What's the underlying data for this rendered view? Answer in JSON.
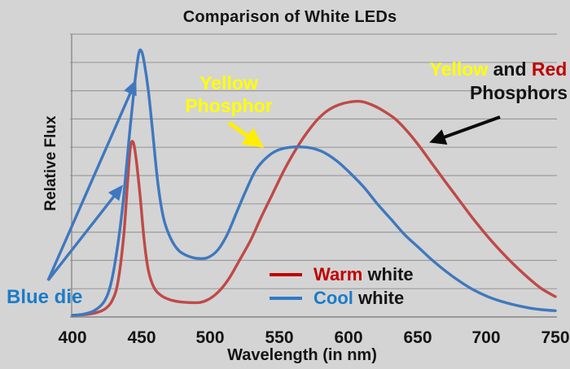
{
  "title": "Comparison of White LEDs",
  "colors": {
    "background": "#d4d4d4",
    "gridline": "#9c9c9c",
    "axis": "#8a8a8a",
    "warm_curve": "#be4a47",
    "cool_curve": "#3f78be",
    "warm_legend_sample": "#c00000",
    "cool_legend_sample": "#2e7bc6",
    "warm_text": "#c00000",
    "cool_text": "#1b7cc8",
    "yellow_text": "#ffff00",
    "red_text": "#c00000",
    "black_text": "#141414",
    "blue_arrow": "#3f78be",
    "yellow_arrow": "#ffee00",
    "black_arrow": "#0a0a0a"
  },
  "chart_data": {
    "type": "line",
    "title": "Comparison of White LEDs",
    "xlabel": "Wavelength (in nm)",
    "ylabel": "Relative Flux",
    "xlim": [
      400,
      750
    ],
    "ylim": [
      0,
      1
    ],
    "x_ticks": [
      400,
      450,
      500,
      550,
      600,
      650,
      700,
      750
    ],
    "x_tick_labels": [
      "400",
      "450",
      "500",
      "550",
      "600",
      "650",
      "700",
      "750"
    ],
    "y_tick_labels": [],
    "y_grid_intervals": 10,
    "grid": "horizontal-only",
    "legend_position": "inside-bottom-center",
    "legend": [
      {
        "label_colored": "Warm",
        "label_rest": "white",
        "color": "#c00000"
      },
      {
        "label_colored": "Cool",
        "label_rest": "white",
        "color": "#2e7bc6"
      }
    ],
    "series": [
      {
        "name": "Warm white",
        "color": "#be4a47",
        "points": [
          [
            400,
            0.006
          ],
          [
            410,
            0.009
          ],
          [
            418,
            0.016
          ],
          [
            424,
            0.03
          ],
          [
            429,
            0.06
          ],
          [
            433,
            0.125
          ],
          [
            437,
            0.28
          ],
          [
            440,
            0.48
          ],
          [
            442,
            0.6
          ],
          [
            444,
            0.618
          ],
          [
            446,
            0.565
          ],
          [
            449,
            0.43
          ],
          [
            452,
            0.27
          ],
          [
            455,
            0.165
          ],
          [
            459,
            0.105
          ],
          [
            464,
            0.077
          ],
          [
            470,
            0.062
          ],
          [
            477,
            0.054
          ],
          [
            485,
            0.051
          ],
          [
            493,
            0.052
          ],
          [
            500,
            0.066
          ],
          [
            507,
            0.095
          ],
          [
            514,
            0.14
          ],
          [
            521,
            0.2
          ],
          [
            529,
            0.27
          ],
          [
            537,
            0.355
          ],
          [
            545,
            0.435
          ],
          [
            553,
            0.515
          ],
          [
            561,
            0.585
          ],
          [
            569,
            0.645
          ],
          [
            577,
            0.695
          ],
          [
            585,
            0.73
          ],
          [
            593,
            0.75
          ],
          [
            601,
            0.76
          ],
          [
            609,
            0.762
          ],
          [
            617,
            0.75
          ],
          [
            625,
            0.73
          ],
          [
            634,
            0.7
          ],
          [
            643,
            0.655
          ],
          [
            652,
            0.6
          ],
          [
            661,
            0.54
          ],
          [
            670,
            0.48
          ],
          [
            680,
            0.415
          ],
          [
            690,
            0.35
          ],
          [
            700,
            0.29
          ],
          [
            710,
            0.235
          ],
          [
            720,
            0.185
          ],
          [
            730,
            0.14
          ],
          [
            740,
            0.1
          ],
          [
            750,
            0.072
          ]
        ]
      },
      {
        "name": "Cool white",
        "color": "#3f78be",
        "points": [
          [
            400,
            0.006
          ],
          [
            408,
            0.01
          ],
          [
            416,
            0.023
          ],
          [
            423,
            0.055
          ],
          [
            428,
            0.12
          ],
          [
            433,
            0.26
          ],
          [
            437,
            0.42
          ],
          [
            441,
            0.63
          ],
          [
            445,
            0.82
          ],
          [
            448,
            0.93
          ],
          [
            450,
            0.94
          ],
          [
            452,
            0.9
          ],
          [
            455,
            0.8
          ],
          [
            458,
            0.66
          ],
          [
            462,
            0.47
          ],
          [
            466,
            0.35
          ],
          [
            471,
            0.28
          ],
          [
            477,
            0.235
          ],
          [
            484,
            0.215
          ],
          [
            491,
            0.207
          ],
          [
            498,
            0.21
          ],
          [
            505,
            0.235
          ],
          [
            512,
            0.29
          ],
          [
            519,
            0.37
          ],
          [
            526,
            0.45
          ],
          [
            533,
            0.52
          ],
          [
            541,
            0.565
          ],
          [
            549,
            0.59
          ],
          [
            558,
            0.6
          ],
          [
            567,
            0.601
          ],
          [
            575,
            0.595
          ],
          [
            583,
            0.58
          ],
          [
            592,
            0.55
          ],
          [
            601,
            0.51
          ],
          [
            611,
            0.46
          ],
          [
            621,
            0.4
          ],
          [
            631,
            0.345
          ],
          [
            641,
            0.29
          ],
          [
            651,
            0.245
          ],
          [
            661,
            0.2
          ],
          [
            671,
            0.16
          ],
          [
            681,
            0.125
          ],
          [
            691,
            0.095
          ],
          [
            701,
            0.072
          ],
          [
            711,
            0.055
          ],
          [
            721,
            0.042
          ],
          [
            731,
            0.032
          ],
          [
            740,
            0.026
          ],
          [
            750,
            0.022
          ]
        ]
      }
    ],
    "annotations": [
      {
        "id": "blue_die",
        "text": "Blue die",
        "color": "#1b7cc8",
        "points_to": "blue 450 nm emission peaks of both curves"
      },
      {
        "id": "yellow_phosphor",
        "text": "Yellow Phosphor",
        "color": "#ffff00",
        "points_to": "cool white broad hump near 560 nm"
      },
      {
        "id": "yellow_red_phosphors",
        "text": "Yellow and Red Phosphors",
        "points_to": "warm white broad peak slope near 640 nm"
      }
    ]
  },
  "annotations": {
    "blue_die": "Blue die",
    "yellow_phosphor_line1": "Yellow",
    "yellow_phosphor_line2": "Phosphor",
    "yr_yellow": "Yellow",
    "yr_and": " and ",
    "yr_red": "Red",
    "yr_line2": "Phosphors"
  }
}
